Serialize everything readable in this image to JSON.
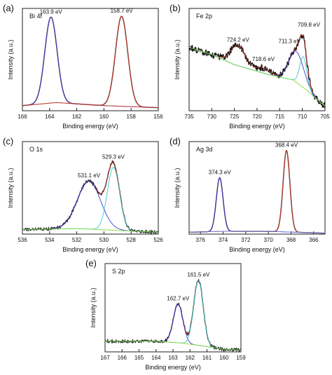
{
  "chart_data": [
    {
      "type": "line",
      "panel_label": "(a)",
      "element_label": "Bi 4f",
      "xlabel": "Binding energy (eV)",
      "ylabel": "Intensity (a.u.)",
      "xlim": [
        166,
        156
      ],
      "xticks": [
        166,
        164,
        162,
        160,
        158,
        156
      ],
      "x_reversed": true,
      "annotations": [
        {
          "text": "163.9 eV",
          "x": 163.9
        },
        {
          "text": "158.7 eV",
          "x": 158.7
        }
      ],
      "series": [
        {
          "role": "raw",
          "color": "#111111",
          "peaks": [
            [
              163.9,
              0.84,
              0.45
            ],
            [
              158.7,
              0.88,
              0.45
            ]
          ],
          "baseline": [
            [
              166,
              0.05
            ],
            [
              163.5,
              0.08
            ],
            [
              160,
              0.05
            ],
            [
              156,
              0.03
            ]
          ]
        },
        {
          "role": "fit",
          "color": "#c0392b",
          "peaks": [
            [
              163.9,
              0.84,
              0.45
            ],
            [
              158.7,
              0.88,
              0.45
            ]
          ],
          "baseline": [
            [
              166,
              0.05
            ],
            [
              163.5,
              0.08
            ],
            [
              160,
              0.05
            ],
            [
              156,
              0.03
            ]
          ]
        },
        {
          "role": "component",
          "color": "#3b3bd6",
          "peaks": [
            [
              163.9,
              0.84,
              0.45
            ]
          ],
          "baseline": [
            [
              166,
              0.05
            ],
            [
              163.5,
              0.08
            ],
            [
              160,
              0.05
            ],
            [
              156,
              0.03
            ]
          ]
        },
        {
          "role": "component",
          "color": "#c0392b",
          "peaks": [
            [
              158.7,
              0.88,
              0.45
            ]
          ],
          "baseline": [
            [
              166,
              0.05
            ],
            [
              163.5,
              0.08
            ],
            [
              160,
              0.05
            ],
            [
              156,
              0.03
            ]
          ]
        },
        {
          "role": "background",
          "color": "#c0392b",
          "peaks": [],
          "baseline": [
            [
              166,
              0.05
            ],
            [
              163.5,
              0.08
            ],
            [
              160,
              0.05
            ],
            [
              156,
              0.03
            ]
          ]
        }
      ]
    },
    {
      "type": "line",
      "panel_label": "(b)",
      "element_label": "Fe 2p",
      "xlabel": "Binding energy (eV)",
      "ylabel": "Intensity (a.u.)",
      "xlim": [
        735,
        705
      ],
      "xticks": [
        735,
        730,
        725,
        720,
        715,
        710,
        705
      ],
      "x_reversed": true,
      "annotations": [
        {
          "text": "724.2 eV",
          "x": 724.2
        },
        {
          "text": "718.6 eV",
          "x": 718.6
        },
        {
          "text": "711.3 eV",
          "x": 711.3
        },
        {
          "text": "709.8 eV",
          "x": 709.8
        }
      ],
      "series": [
        {
          "role": "raw",
          "color": "#111111",
          "noise": 0.035,
          "peaks": [
            [
              724.2,
              0.2,
              1.6
            ],
            [
              718.6,
              0.05,
              1.5
            ],
            [
              711.3,
              0.3,
              1.6
            ],
            [
              709.8,
              0.3,
              0.8
            ]
          ],
          "baseline": [
            [
              735,
              0.62
            ],
            [
              730,
              0.55
            ],
            [
              725,
              0.45
            ],
            [
              718,
              0.36
            ],
            [
              712,
              0.3
            ],
            [
              709,
              0.2
            ],
            [
              706,
              0.08
            ],
            [
              705,
              0.05
            ]
          ]
        },
        {
          "role": "fit",
          "color": "#c0392b",
          "peaks": [
            [
              724.2,
              0.2,
              1.6
            ],
            [
              718.6,
              0.05,
              1.5
            ],
            [
              711.3,
              0.3,
              1.6
            ],
            [
              709.8,
              0.3,
              0.8
            ]
          ],
          "baseline": [
            [
              735,
              0.62
            ],
            [
              730,
              0.55
            ],
            [
              725,
              0.45
            ],
            [
              718,
              0.36
            ],
            [
              712,
              0.3
            ],
            [
              709,
              0.2
            ],
            [
              706,
              0.08
            ],
            [
              705,
              0.05
            ]
          ]
        },
        {
          "role": "component",
          "color": "#3b3bd6",
          "peaks": [
            [
              711.3,
              0.3,
              1.6
            ]
          ],
          "baseline": [
            [
              735,
              0.62
            ],
            [
              730,
              0.55
            ],
            [
              725,
              0.45
            ],
            [
              718,
              0.36
            ],
            [
              712,
              0.3
            ],
            [
              709,
              0.2
            ],
            [
              706,
              0.08
            ],
            [
              705,
              0.05
            ]
          ]
        },
        {
          "role": "component",
          "color": "#3ec9c9",
          "peaks": [
            [
              709.8,
              0.3,
              0.8
            ]
          ],
          "baseline": [
            [
              735,
              0.62
            ],
            [
              730,
              0.55
            ],
            [
              725,
              0.45
            ],
            [
              718,
              0.36
            ],
            [
              712,
              0.3
            ],
            [
              709,
              0.2
            ],
            [
              706,
              0.08
            ],
            [
              705,
              0.05
            ]
          ]
        },
        {
          "role": "background",
          "color": "#7ddc3a",
          "peaks": [],
          "baseline": [
            [
              735,
              0.62
            ],
            [
              730,
              0.55
            ],
            [
              725,
              0.45
            ],
            [
              718,
              0.36
            ],
            [
              712,
              0.3
            ],
            [
              709,
              0.2
            ],
            [
              706,
              0.08
            ],
            [
              705,
              0.05
            ]
          ]
        }
      ]
    },
    {
      "type": "line",
      "panel_label": "(c)",
      "element_label": "O 1s",
      "xlabel": "Binding energy (eV)",
      "ylabel": "Intensity (a.u.)",
      "xlim": [
        536,
        526
      ],
      "xticks": [
        536,
        534,
        532,
        530,
        528,
        526
      ],
      "x_reversed": true,
      "annotations": [
        {
          "text": "531.1 eV",
          "x": 531.1
        },
        {
          "text": "529.3 eV",
          "x": 529.3
        }
      ],
      "series": [
        {
          "role": "raw",
          "color": "#111111",
          "noise": 0.012,
          "peaks": [
            [
              531.1,
              0.52,
              0.85
            ],
            [
              529.3,
              0.68,
              0.45
            ]
          ],
          "baseline": [
            [
              536,
              0.05
            ],
            [
              532,
              0.06
            ],
            [
              529,
              0.04
            ],
            [
              526,
              0.02
            ]
          ]
        },
        {
          "role": "fit",
          "color": "#c0392b",
          "peaks": [
            [
              531.1,
              0.52,
              0.85
            ],
            [
              529.3,
              0.68,
              0.45
            ]
          ],
          "baseline": [
            [
              536,
              0.05
            ],
            [
              532,
              0.06
            ],
            [
              529,
              0.04
            ],
            [
              526,
              0.02
            ]
          ]
        },
        {
          "role": "component",
          "color": "#3b3bd6",
          "peaks": [
            [
              531.1,
              0.52,
              0.85
            ]
          ],
          "baseline": [
            [
              536,
              0.05
            ],
            [
              532,
              0.06
            ],
            [
              529,
              0.04
            ],
            [
              526,
              0.02
            ]
          ]
        },
        {
          "role": "component",
          "color": "#3ec9c9",
          "peaks": [
            [
              529.3,
              0.68,
              0.45
            ]
          ],
          "baseline": [
            [
              536,
              0.05
            ],
            [
              532,
              0.06
            ],
            [
              529,
              0.04
            ],
            [
              526,
              0.02
            ]
          ]
        },
        {
          "role": "background",
          "color": "#7ddc3a",
          "peaks": [],
          "baseline": [
            [
              536,
              0.05
            ],
            [
              532,
              0.06
            ],
            [
              529,
              0.04
            ],
            [
              526,
              0.02
            ]
          ]
        }
      ]
    },
    {
      "type": "line",
      "panel_label": "(d)",
      "element_label": "Ag 3d",
      "xlabel": "Binding energy (eV)",
      "ylabel": "Intensity (a.u.)",
      "xlim": [
        377,
        365
      ],
      "xticks": [
        376,
        374,
        372,
        370,
        368,
        366
      ],
      "x_reversed": true,
      "annotations": [
        {
          "text": "374.3 eV",
          "x": 374.3
        },
        {
          "text": "368.4 eV",
          "x": 368.4
        }
      ],
      "series": [
        {
          "role": "raw",
          "color": "#111111",
          "peaks": [
            [
              374.3,
              0.58,
              0.3
            ],
            [
              368.4,
              0.88,
              0.3
            ]
          ],
          "baseline": [
            [
              377,
              0.02
            ],
            [
              374,
              0.03
            ],
            [
              370,
              0.03
            ],
            [
              365,
              0.01
            ]
          ]
        },
        {
          "role": "fit",
          "color": "#c0392b",
          "peaks": [
            [
              374.3,
              0.58,
              0.3
            ],
            [
              368.4,
              0.88,
              0.3
            ]
          ],
          "baseline": [
            [
              377,
              0.02
            ],
            [
              374,
              0.03
            ],
            [
              370,
              0.03
            ],
            [
              365,
              0.01
            ]
          ]
        },
        {
          "role": "component",
          "color": "#3b3bd6",
          "peaks": [
            [
              374.3,
              0.58,
              0.3
            ]
          ],
          "baseline": [
            [
              377,
              0.02
            ],
            [
              374,
              0.03
            ],
            [
              370,
              0.03
            ],
            [
              365,
              0.01
            ]
          ]
        },
        {
          "role": "component",
          "color": "#c0392b",
          "peaks": [
            [
              368.4,
              0.88,
              0.3
            ]
          ],
          "baseline": [
            [
              377,
              0.02
            ],
            [
              374,
              0.03
            ],
            [
              370,
              0.03
            ],
            [
              365,
              0.01
            ]
          ]
        },
        {
          "role": "background",
          "color": "#6d7be0",
          "peaks": [],
          "baseline": [
            [
              377,
              0.02
            ],
            [
              374,
              0.03
            ],
            [
              370,
              0.03
            ],
            [
              365,
              0.01
            ]
          ]
        }
      ]
    },
    {
      "type": "line",
      "panel_label": "(e)",
      "element_label": "S 2p",
      "xlabel": "Binding energy (eV)",
      "ylabel": "Intensity (a.u.)",
      "xlim": [
        167,
        159
      ],
      "xticks": [
        167,
        166,
        165,
        164,
        163,
        162,
        161,
        160,
        159
      ],
      "x_reversed": true,
      "annotations": [
        {
          "text": "162.7 eV",
          "x": 162.7
        },
        {
          "text": "161.5 eV",
          "x": 161.5
        }
      ],
      "series": [
        {
          "role": "raw",
          "color": "#111111",
          "noise": 0.014,
          "peaks": [
            [
              162.7,
              0.44,
              0.28
            ],
            [
              161.5,
              0.74,
              0.28
            ]
          ],
          "baseline": [
            [
              167,
              0.12
            ],
            [
              164,
              0.12
            ],
            [
              162.5,
              0.1
            ],
            [
              161,
              0.06
            ],
            [
              160,
              0.03
            ],
            [
              159,
              0.02
            ]
          ]
        },
        {
          "role": "fit",
          "color": "#c0392b",
          "peaks": [
            [
              162.7,
              0.44,
              0.28
            ],
            [
              161.5,
              0.74,
              0.28
            ]
          ],
          "baseline": [
            [
              167,
              0.12
            ],
            [
              164,
              0.12
            ],
            [
              162.5,
              0.1
            ],
            [
              161,
              0.06
            ],
            [
              160,
              0.03
            ],
            [
              159,
              0.02
            ]
          ]
        },
        {
          "role": "component",
          "color": "#3b3bd6",
          "peaks": [
            [
              162.7,
              0.44,
              0.28
            ]
          ],
          "baseline": [
            [
              167,
              0.12
            ],
            [
              164,
              0.12
            ],
            [
              162.5,
              0.1
            ],
            [
              161,
              0.06
            ],
            [
              160,
              0.03
            ],
            [
              159,
              0.02
            ]
          ]
        },
        {
          "role": "component",
          "color": "#3ec9c9",
          "peaks": [
            [
              161.5,
              0.74,
              0.28
            ]
          ],
          "baseline": [
            [
              167,
              0.12
            ],
            [
              164,
              0.12
            ],
            [
              162.5,
              0.1
            ],
            [
              161,
              0.06
            ],
            [
              160,
              0.03
            ],
            [
              159,
              0.02
            ]
          ]
        },
        {
          "role": "background",
          "color": "#7ddc3a",
          "peaks": [],
          "baseline": [
            [
              167,
              0.12
            ],
            [
              164,
              0.12
            ],
            [
              162.5,
              0.1
            ],
            [
              161,
              0.06
            ],
            [
              160,
              0.03
            ],
            [
              159,
              0.02
            ]
          ]
        }
      ]
    }
  ]
}
